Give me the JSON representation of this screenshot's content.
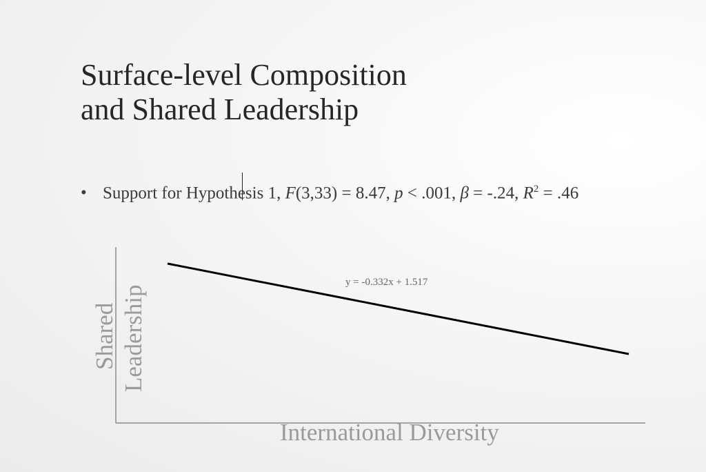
{
  "slide": {
    "title_line1": "Surface-level Composition",
    "title_line2": "and Shared Leadership",
    "bullet": {
      "symbol": "•",
      "lead": "Support for Hypothesis 1, ",
      "F": "F",
      "f_args": "(3,33) = 8.47, ",
      "p": "p",
      "p_val": " < .001, ",
      "beta": "β",
      "beta_val": " = -.24, ",
      "R": "R",
      "R_sup": "2",
      "R_val": " = .46"
    }
  },
  "chart_data": {
    "type": "line",
    "xlabel": "International Diversity",
    "ylabel_line1": "Shared",
    "ylabel_line2": "Leadership",
    "trendline_label": "y = -0.332x + 1.517",
    "slope": -0.332,
    "intercept": 1.517,
    "x_range": [
      0.0,
      1.0
    ],
    "line_color": "#000000",
    "axis_color": "#8c8c8c",
    "grid": false,
    "legend": "none"
  }
}
